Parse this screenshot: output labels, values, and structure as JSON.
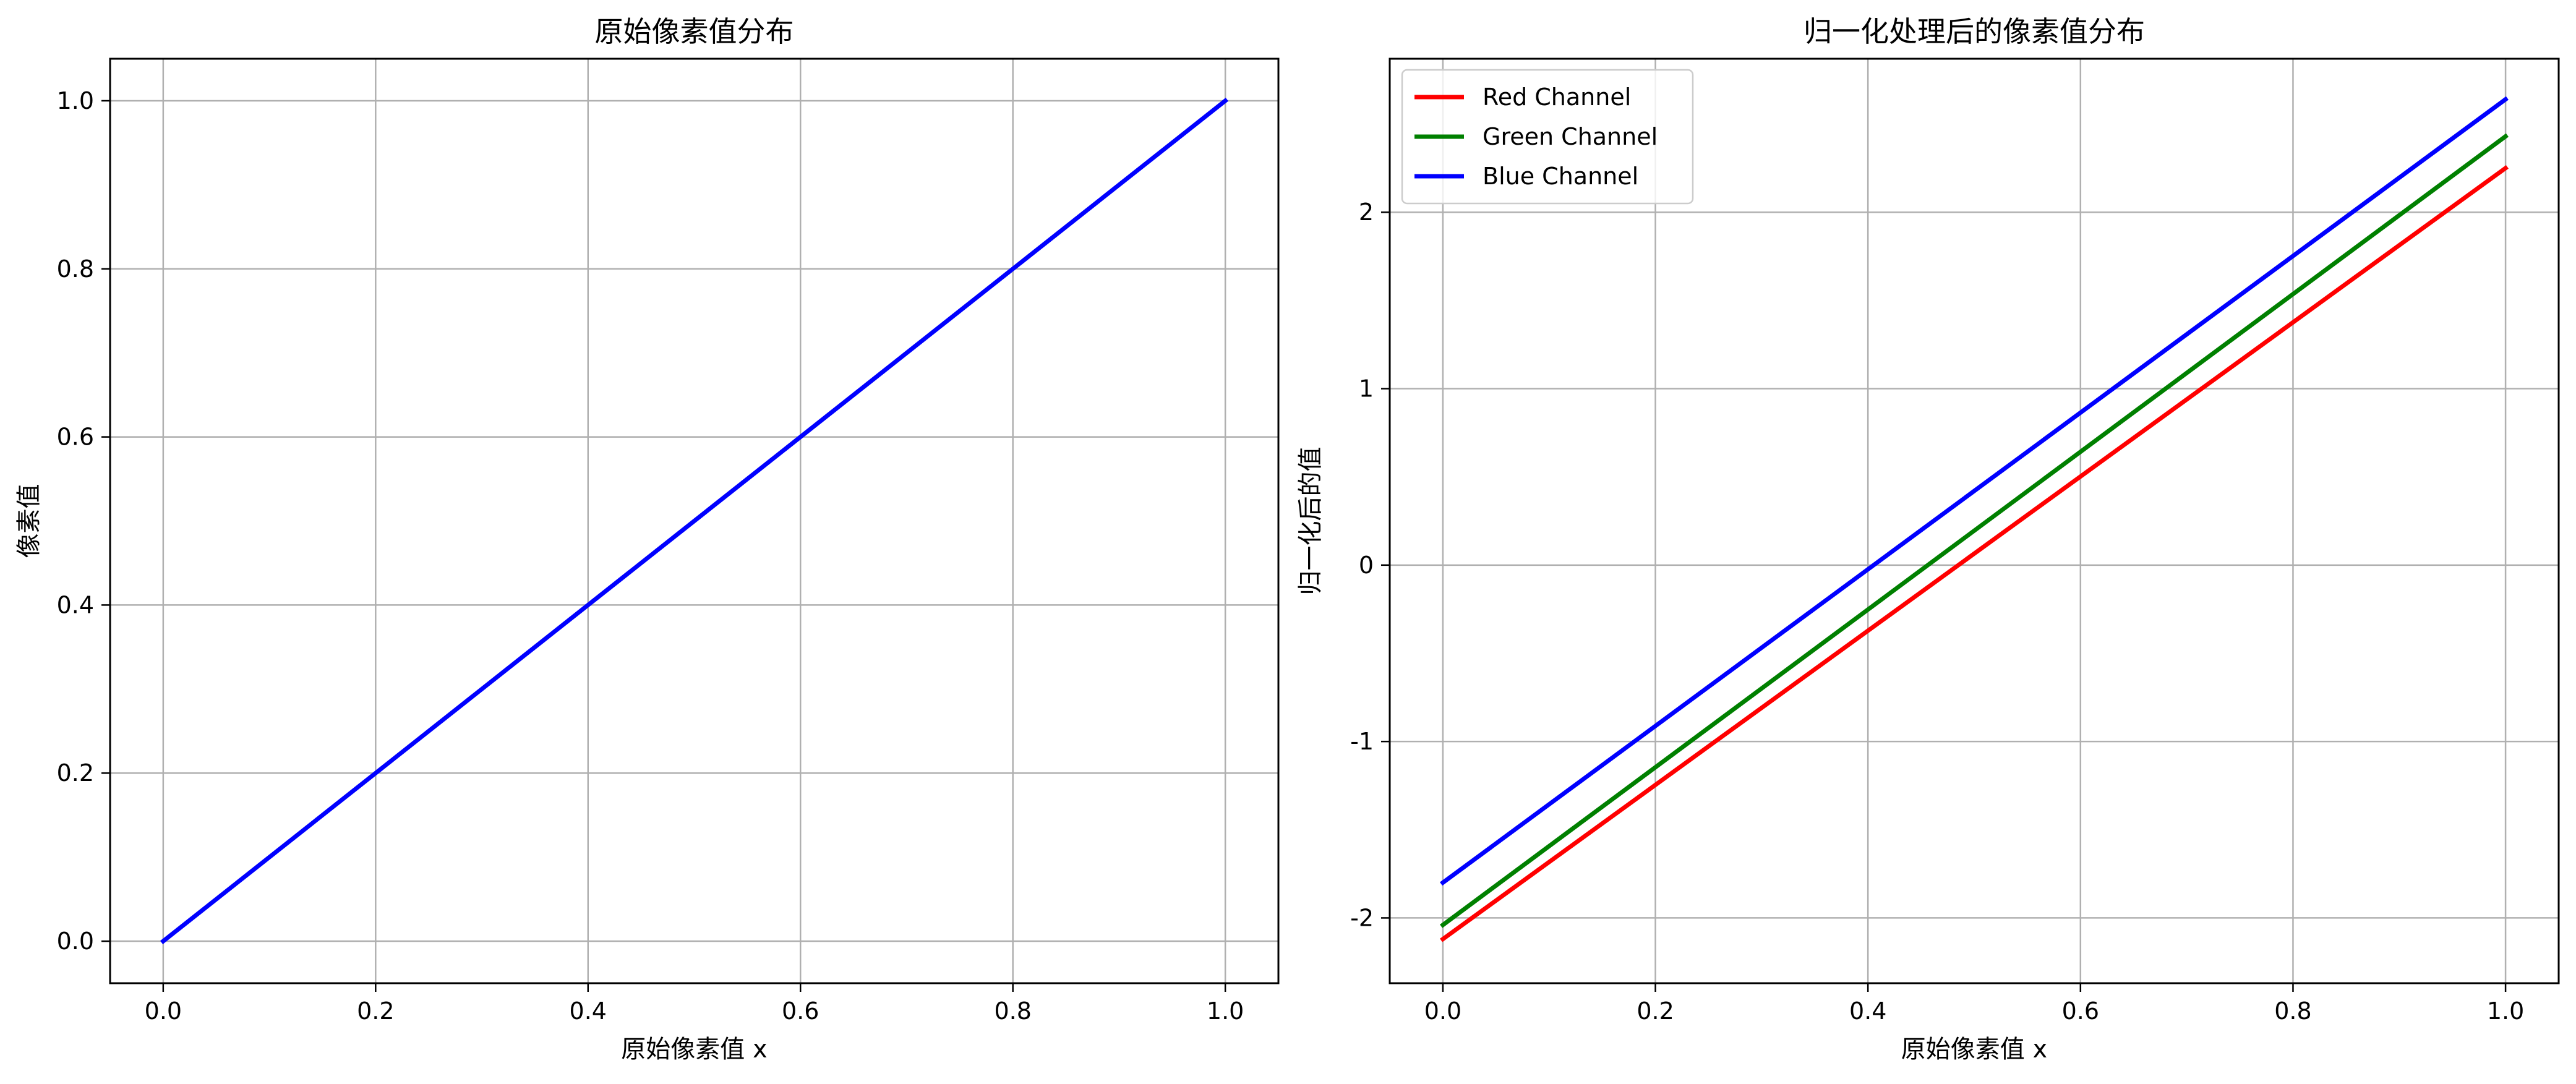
{
  "chart_data": [
    {
      "type": "line",
      "title": "原始像素值分布",
      "xlabel": "原始像素值 x",
      "ylabel": "像素值",
      "xlim": [
        -0.05,
        1.05
      ],
      "ylim": [
        -0.05,
        1.05
      ],
      "x_ticks": [
        0.0,
        0.2,
        0.4,
        0.6,
        0.8,
        1.0
      ],
      "x_tick_labels": [
        "0.0",
        "0.2",
        "0.4",
        "0.6",
        "0.8",
        "1.0"
      ],
      "y_ticks": [
        0.0,
        0.2,
        0.4,
        0.6,
        0.8,
        1.0
      ],
      "y_tick_labels": [
        "0.0",
        "0.2",
        "0.4",
        "0.6",
        "0.8",
        "1.0"
      ],
      "grid": true,
      "legend": null,
      "series": [
        {
          "color": "#0000ff",
          "x": [
            0.0,
            1.0
          ],
          "y": [
            0.0,
            1.0
          ]
        }
      ]
    },
    {
      "type": "line",
      "title": "归一化处理后的像素值分布",
      "xlabel": "原始像素值 x",
      "ylabel": "归一化后的值",
      "xlim": [
        -0.05,
        1.05
      ],
      "ylim": [
        -2.37,
        2.87
      ],
      "x_ticks": [
        0.0,
        0.2,
        0.4,
        0.6,
        0.8,
        1.0
      ],
      "x_tick_labels": [
        "0.0",
        "0.2",
        "0.4",
        "0.6",
        "0.8",
        "1.0"
      ],
      "y_ticks": [
        -2,
        -1,
        0,
        1,
        2
      ],
      "y_tick_labels": [
        "-2",
        "-1",
        "0",
        "1",
        "2"
      ],
      "grid": true,
      "legend": "top-left",
      "series": [
        {
          "name": "Red Channel",
          "color": "#ff0000",
          "x": [
            0.0,
            1.0
          ],
          "y": [
            -2.12,
            2.25
          ]
        },
        {
          "name": "Green Channel",
          "color": "#008000",
          "x": [
            0.0,
            1.0
          ],
          "y": [
            -2.04,
            2.43
          ]
        },
        {
          "name": "Blue Channel",
          "color": "#0000ff",
          "x": [
            0.0,
            1.0
          ],
          "y": [
            -1.8,
            2.64
          ]
        }
      ]
    }
  ]
}
